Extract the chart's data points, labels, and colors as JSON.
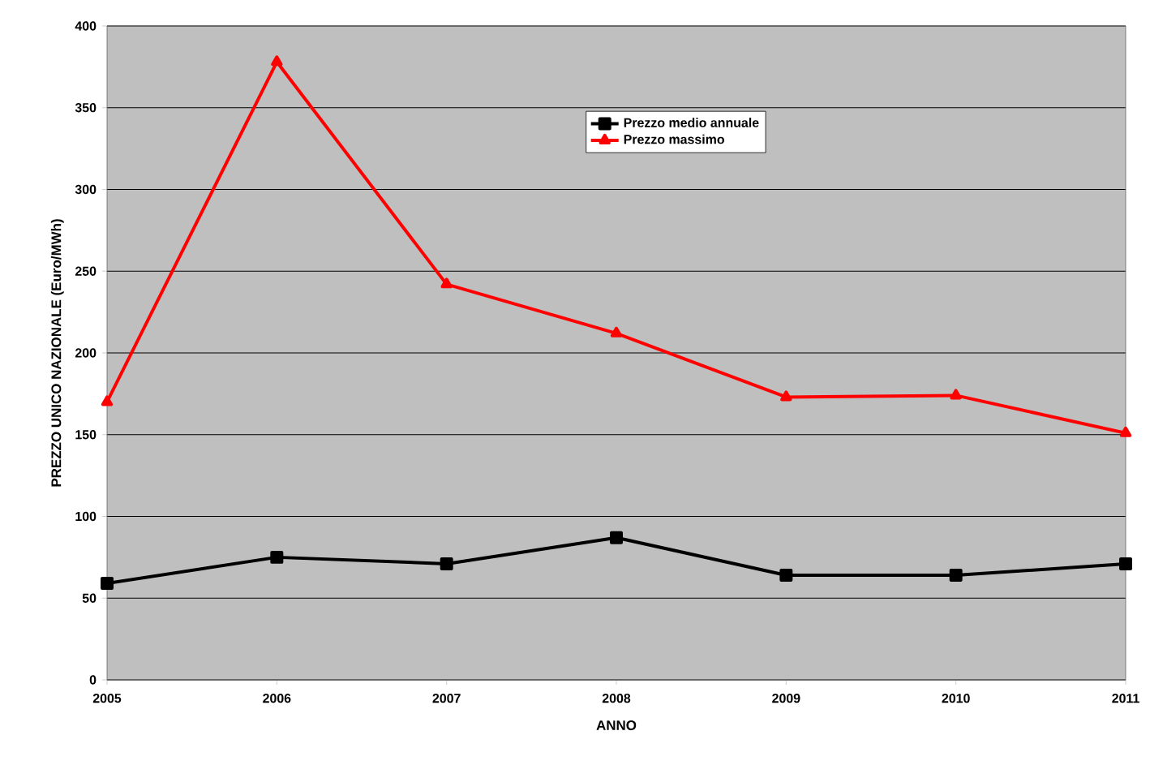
{
  "chart_data": {
    "type": "line",
    "xlabel": "ANNO",
    "ylabel": "PREZZO UNICO NAZIONALE (Euro/MWh)",
    "categories": [
      "2005",
      "2006",
      "2007",
      "2008",
      "2009",
      "2010",
      "2011"
    ],
    "series": [
      {
        "name": "Prezzo medio annuale",
        "color": "#000000",
        "marker": "square",
        "values": [
          59,
          75,
          71,
          87,
          64,
          64,
          71
        ]
      },
      {
        "name": "Prezzo massimo",
        "color": "#ff0000",
        "marker": "triangle",
        "values": [
          170,
          378,
          242,
          212,
          173,
          174,
          151
        ]
      }
    ],
    "ylim": [
      0,
      400
    ],
    "yticks": [
      0,
      50,
      100,
      150,
      200,
      250,
      300,
      350,
      400
    ],
    "grid": "y",
    "legend": "top",
    "line_style": "solid"
  }
}
